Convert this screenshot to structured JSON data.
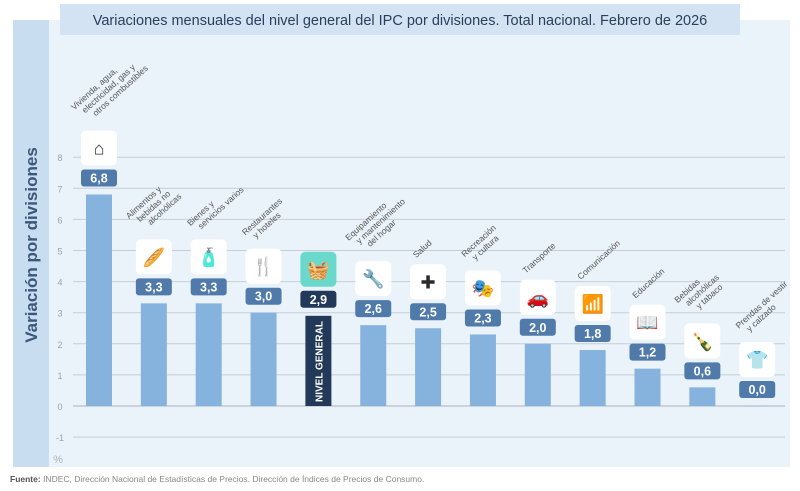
{
  "chart_data": {
    "type": "bar",
    "title": "Variaciones mensuales del nivel general del IPC por divisiones. Total nacional. Febrero de 2026",
    "ylabel": "Variación por divisiones",
    "yunit": "%",
    "ylim": [
      -1,
      8
    ],
    "yticks": [
      "-1",
      "0",
      "1",
      "2",
      "3",
      "4",
      "5",
      "6",
      "7",
      "8"
    ],
    "grid": true,
    "categories": [
      [
        "Vivienda, agua,",
        "electricidad, gas y",
        "otros combustibles"
      ],
      [
        "Alimentos y",
        "bebidas no",
        "alcohólicas"
      ],
      [
        "Bienes y",
        "servicios varios"
      ],
      [
        "Restaurantes",
        "y hoteles"
      ],
      [],
      [
        "Equipamiento",
        "y mantenimiento",
        "del hogar"
      ],
      [
        "Salud"
      ],
      [
        "Recreación",
        "y cultura"
      ],
      [
        "Transporte"
      ],
      [
        "Comunicación"
      ],
      [
        "Educación"
      ],
      [
        "Bebidas",
        "alcohólicas",
        "y tabaco"
      ],
      [
        "Prendas de vestir",
        "y calzado"
      ]
    ],
    "values": [
      6.8,
      3.3,
      3.3,
      3.0,
      2.9,
      2.6,
      2.5,
      2.3,
      2.0,
      1.8,
      1.2,
      0.6,
      0.0
    ],
    "value_labels": [
      "6,8",
      "3,3",
      "3,3",
      "3,0",
      "2,9",
      "2,6",
      "2,5",
      "2,3",
      "2,0",
      "1,8",
      "1,2",
      "0,6",
      "0,0"
    ],
    "icons": [
      "house-energy-icon",
      "food-icon",
      "personal-care-icon",
      "restaurant-icon",
      "basket-icon",
      "tools-icon",
      "health-cross-icon",
      "theater-masks-icon",
      "car-icon",
      "wifi-icon",
      "book-icon",
      "bottle-icon",
      "tshirt-icon"
    ],
    "highlight_index": 4,
    "highlight_label": "NIVEL GENERAL",
    "colors": {
      "bar": "#86b2de",
      "highlight_bar": "#22395a",
      "badge": "#4f7aaa",
      "highlight_icon_bg": "#6ad8cb",
      "background": "#eaf2fa",
      "title_bg": "#d3e3f3"
    }
  },
  "source": {
    "label": "Fuente:",
    "text": " INDEC, Dirección Nacional de Estadísticas de Precios. Dirección de Índices de Precios de Consumo."
  }
}
